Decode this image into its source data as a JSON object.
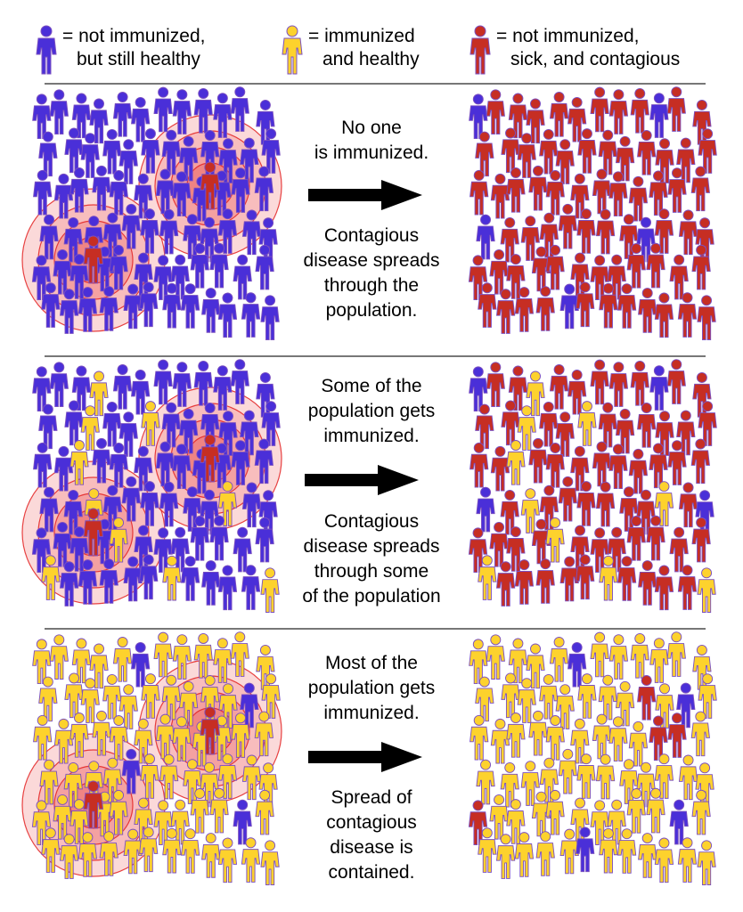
{
  "colors": {
    "not_immunized": "#4a2fd8",
    "immunized": "#fdd22d",
    "sick": "#c62e23",
    "outline": "#7b50c0",
    "divider": "#777777",
    "ring_fill": "#f6a8a8",
    "ring_stroke": "#e32020"
  },
  "legend": [
    {
      "icon": "person-icon-blue",
      "line1": "= not immunized,",
      "line2": "but still healthy"
    },
    {
      "icon": "person-icon-yellow",
      "line1": "= immunized",
      "line2": "and healthy"
    },
    {
      "icon": "person-icon-red",
      "line1": "= not immunized,",
      "line2": "sick, and contagious"
    }
  ],
  "rows": [
    {
      "caption_top": [
        "No one",
        "is immunized."
      ],
      "caption_bottom": [
        "Contagious",
        "disease spreads",
        "through the",
        "population."
      ]
    },
    {
      "caption_top": [
        "Some of the",
        "population gets",
        "immunized."
      ],
      "caption_bottom": [
        "Contagious",
        "disease spreads",
        "through some",
        "of the population"
      ]
    },
    {
      "caption_top": [
        "Most of the",
        "population gets",
        "immunized."
      ],
      "caption_bottom": [
        "Spread of",
        "contagious",
        "disease is",
        "contained."
      ]
    }
  ]
}
